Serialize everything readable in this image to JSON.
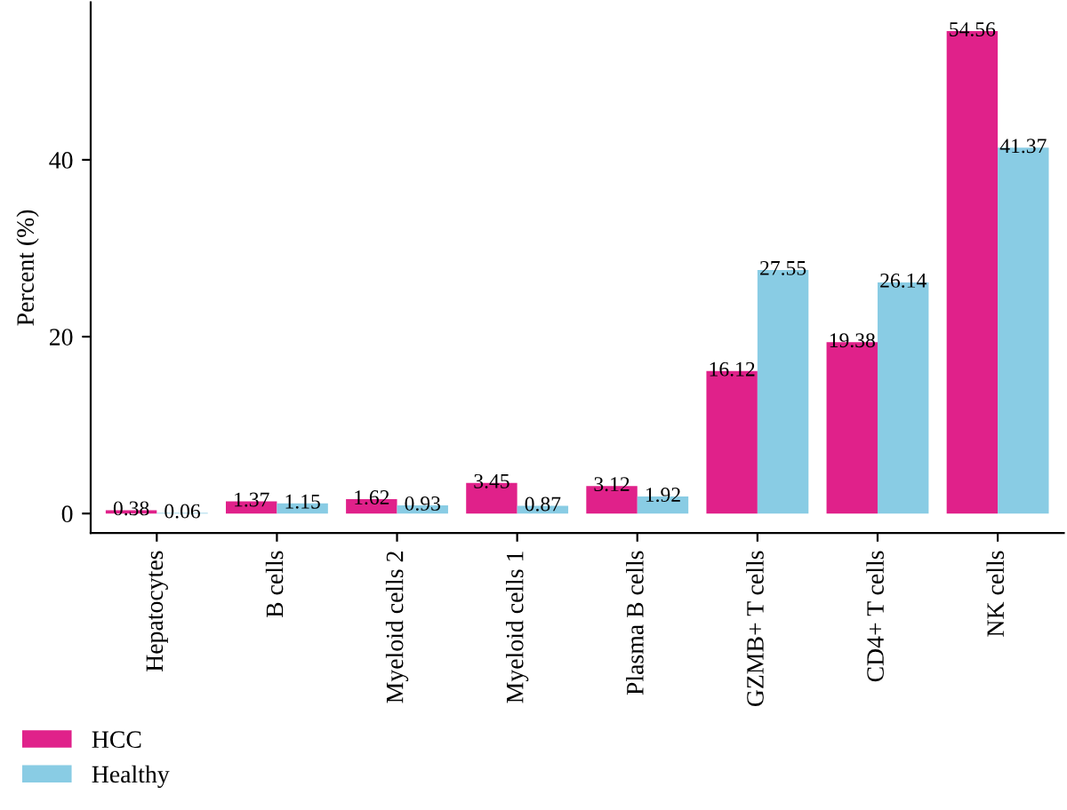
{
  "chart_data": {
    "type": "bar",
    "ylabel": "Percent (%)",
    "categories": [
      "Hepatocytes",
      "B cells",
      "Myeloid cells 2",
      "Myeloid cells 1",
      "Plasma B cells",
      "GZMB+ T cells",
      "CD4+ T cells",
      "NK cells"
    ],
    "series": [
      {
        "name": "HCC",
        "color": "#e0218a",
        "values": [
          0.38,
          1.37,
          1.62,
          3.45,
          3.12,
          16.12,
          19.38,
          54.56
        ]
      },
      {
        "name": "Healthy",
        "color": "#89cce4",
        "values": [
          0.06,
          1.15,
          0.93,
          0.87,
          1.92,
          27.55,
          26.14,
          41.37
        ]
      }
    ],
    "ylim": [
      -2.2,
      57.8
    ],
    "yticks": [
      0,
      20,
      40
    ],
    "data_labels": true,
    "legend": "bottom left",
    "grid": false
  }
}
